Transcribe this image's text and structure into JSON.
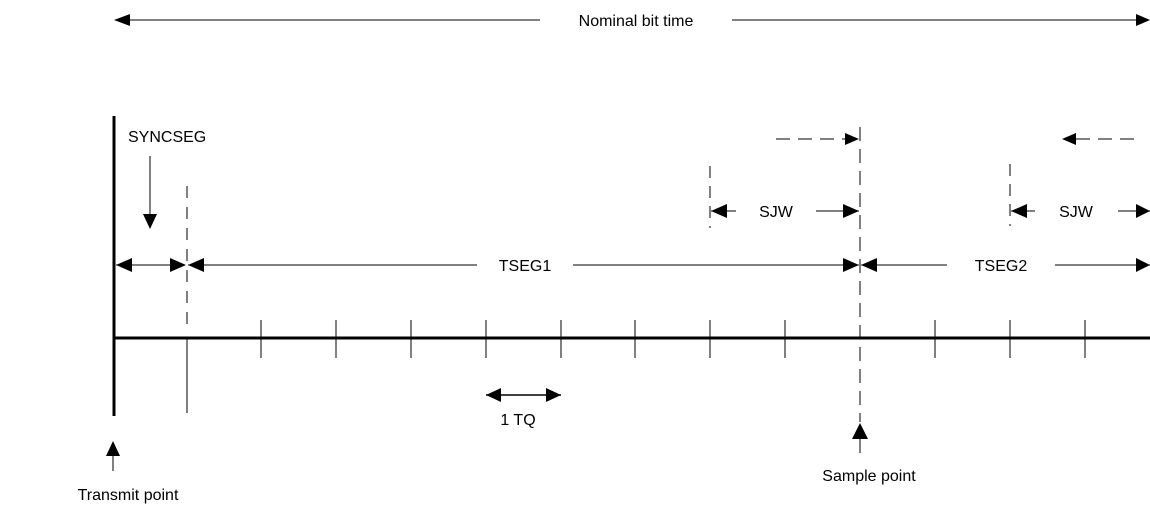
{
  "diagram": {
    "title_label": "Nominal bit time",
    "syncseg_label": "SYNCSEG",
    "tseg1_label": "TSEG1",
    "tseg2_label": "TSEG2",
    "sjw_left_label": "SJW",
    "sjw_right_label": "SJW",
    "tq_label": "1 TQ",
    "transmit_point_label": "Transmit point",
    "sample_point_label": "Sample point"
  }
}
